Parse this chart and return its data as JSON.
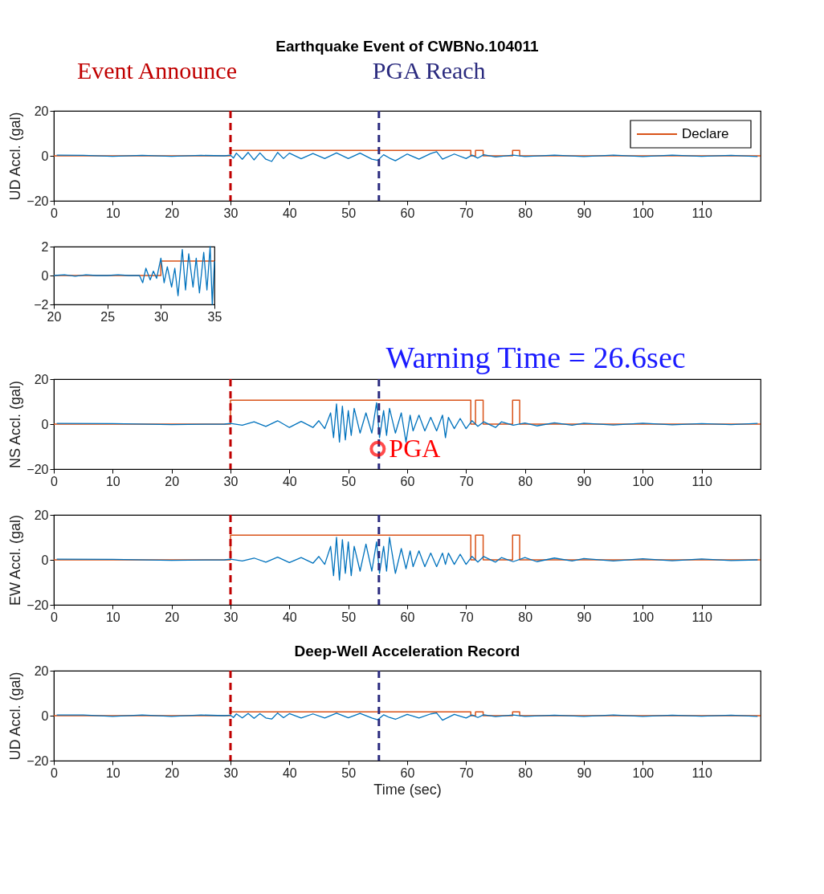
{
  "chart_data": [
    {
      "type": "line",
      "title": "Earthquake Event of CWBNo.104011",
      "ylabel": "UD Accl. (gal)",
      "xlim": [
        0,
        120
      ],
      "xticks": [
        0,
        10,
        20,
        30,
        40,
        50,
        60,
        70,
        80,
        90,
        100,
        110
      ],
      "ylim": [
        -20,
        20
      ],
      "yticks": [
        -20,
        0,
        20
      ],
      "grid": false,
      "legend": "top right",
      "line_style": "solid",
      "series": [
        {
          "color": "#0072bd",
          "x": [
            0.5,
            5,
            10,
            15,
            20,
            25,
            29,
            30,
            30.5,
            31,
            32,
            33,
            34,
            35,
            36,
            37,
            38,
            39,
            40,
            42,
            44,
            46,
            48,
            50,
            52,
            54,
            55,
            56,
            57,
            58,
            60,
            62,
            64,
            65,
            66,
            68,
            70,
            71,
            72,
            73,
            75,
            78,
            80,
            85,
            90,
            95,
            100,
            105,
            110,
            115,
            119.5
          ],
          "values": [
            0.3,
            0.2,
            -0.2,
            0.2,
            -0.2,
            0.2,
            0,
            0.3,
            -1,
            1.2,
            -1.5,
            1.5,
            -1.8,
            1.3,
            -1.5,
            -2.5,
            1.5,
            -1.2,
            1.2,
            -1.3,
            1,
            -1.2,
            1.3,
            -1.2,
            1.2,
            -1.5,
            -2,
            0.5,
            -1,
            -2.2,
            0.8,
            -1.5,
            1,
            1.8,
            -1.5,
            0.8,
            -1.2,
            0.3,
            -1,
            0.5,
            -0.5,
            0.3,
            -0.3,
            0.3,
            -0.3,
            0.3,
            -0.3,
            0.3,
            -0.2,
            0.2,
            -0.3
          ]
        },
        {
          "name": "Declare",
          "type": "step",
          "color": "#d95319",
          "x": [
            0,
            30,
            70.8,
            71.6,
            72.9,
            77.9,
            79.1,
            120
          ],
          "values": [
            0,
            2.4,
            0,
            2.4,
            0,
            2.4,
            0,
            0
          ]
        }
      ],
      "ref_lines": [
        {
          "axis": "x",
          "value": 30,
          "label": "Event Announce",
          "color": "#c00000",
          "line_style": "dashed"
        },
        {
          "axis": "x",
          "value": 55.2,
          "label": "PGA Reach",
          "color": "#2b2b7f",
          "line_style": "dashed"
        }
      ]
    },
    {
      "type": "line",
      "xlim": [
        20,
        35
      ],
      "xticks": [
        20,
        25,
        30,
        35
      ],
      "ylim": [
        -2,
        2
      ],
      "yticks": [
        -2,
        0,
        2
      ],
      "grid": false,
      "line_style": "solid",
      "series": [
        {
          "color": "#0072bd",
          "x": [
            20,
            21,
            22,
            23,
            24,
            25,
            26,
            27,
            28,
            28.3,
            28.6,
            29,
            29.3,
            29.6,
            30,
            30.3,
            30.6,
            31,
            31.3,
            31.6,
            32,
            32.3,
            32.6,
            33,
            33.3,
            33.6,
            34,
            34.3,
            34.6,
            34.8,
            35
          ],
          "values": [
            0,
            0.05,
            -0.05,
            0.05,
            0,
            0,
            0.05,
            0,
            0,
            -0.5,
            0.5,
            -0.3,
            0.3,
            -0.2,
            1.2,
            -0.5,
            0.6,
            -0.8,
            0.5,
            -1.4,
            1.8,
            -1,
            1.5,
            -0.8,
            1.2,
            -1.2,
            1.6,
            -1,
            2,
            -2,
            1
          ]
        },
        {
          "type": "step",
          "color": "#d95319",
          "x": [
            20,
            30,
            35
          ],
          "values": [
            0,
            1,
            1
          ]
        }
      ]
    },
    {
      "type": "line",
      "ylabel": "NS Accl. (gal)",
      "xlim": [
        0,
        120
      ],
      "xticks": [
        0,
        10,
        20,
        30,
        40,
        50,
        60,
        70,
        80,
        90,
        100,
        110
      ],
      "ylim": [
        -20,
        20
      ],
      "yticks": [
        -20,
        0,
        20
      ],
      "grid": false,
      "line_style": "solid",
      "annotations": [
        "Warning Time = 26.6sec",
        {
          "text": "PGA",
          "x": 55,
          "y": -11
        }
      ],
      "series": [
        {
          "color": "#0072bd",
          "x": [
            0.5,
            10,
            20,
            29,
            30,
            32,
            34,
            36,
            38,
            40,
            42,
            44,
            45,
            46,
            47,
            47.5,
            48,
            48.5,
            49,
            49.5,
            50,
            50.5,
            51,
            52,
            53,
            54,
            54.8,
            55.3,
            56,
            56.5,
            57,
            58,
            59,
            59.8,
            60.5,
            61,
            62,
            63,
            64,
            65,
            66,
            66.5,
            67,
            68,
            69,
            70,
            71,
            72,
            73,
            75,
            76,
            78,
            80,
            82,
            85,
            88,
            90,
            95,
            100,
            105,
            110,
            115,
            119.5
          ],
          "values": [
            0.3,
            0.2,
            -0.2,
            0,
            0.3,
            -0.5,
            1,
            -1,
            1.5,
            -1.5,
            1.2,
            -1.5,
            1.5,
            -2,
            5,
            -6,
            9,
            -8,
            8,
            -7,
            6,
            -5,
            7,
            -4,
            5,
            -4,
            9.5,
            -6,
            6,
            -5,
            7,
            -4,
            5,
            -8,
            4,
            -3,
            4,
            -3,
            3,
            -3,
            4,
            -6,
            3,
            -2,
            2.5,
            -2,
            1.5,
            -1,
            1,
            -1.5,
            1,
            -0.5,
            0.5,
            -0.8,
            0.6,
            -0.5,
            0.4,
            -0.4,
            0.4,
            -0.3,
            0.2,
            -0.2,
            0.3
          ]
        },
        {
          "type": "step",
          "color": "#d95319",
          "x": [
            0,
            30,
            70.8,
            71.6,
            72.9,
            77.9,
            79.1,
            120
          ],
          "values": [
            0,
            10.6,
            0,
            10.6,
            0,
            10.6,
            0,
            0
          ]
        }
      ],
      "ref_lines": [
        {
          "axis": "x",
          "value": 30,
          "color": "#c00000",
          "line_style": "dashed"
        },
        {
          "axis": "x",
          "value": 55.2,
          "color": "#2b2b7f",
          "line_style": "dashed"
        }
      ]
    },
    {
      "type": "line",
      "ylabel": "EW Accl. (gal)",
      "xlim": [
        0,
        120
      ],
      "xticks": [
        0,
        10,
        20,
        30,
        40,
        50,
        60,
        70,
        80,
        90,
        100,
        110
      ],
      "ylim": [
        -20,
        20
      ],
      "yticks": [
        -20,
        0,
        20
      ],
      "grid": false,
      "line_style": "solid",
      "series": [
        {
          "color": "#0072bd",
          "x": [
            0.5,
            10,
            20,
            29,
            30,
            32,
            34,
            36,
            38,
            40,
            42,
            44,
            45,
            46,
            47,
            47.5,
            48,
            48.5,
            49,
            49.5,
            50,
            50.5,
            51,
            52,
            53,
            54,
            54.8,
            55.3,
            56,
            56.5,
            57,
            58,
            59,
            59.8,
            60.5,
            61,
            62,
            63,
            64,
            65,
            66,
            66.5,
            67,
            68,
            69,
            70,
            71,
            72,
            73,
            75,
            76,
            78,
            80,
            82,
            85,
            88,
            90,
            95,
            100,
            105,
            110,
            115,
            119.5
          ],
          "values": [
            0.3,
            0.2,
            -0.2,
            0,
            0.3,
            -0.5,
            0.8,
            -1,
            1.2,
            -1.2,
            1,
            -1.5,
            1.5,
            -2,
            6,
            -7,
            10,
            -9,
            9,
            -6,
            8,
            -7,
            6,
            -5,
            7,
            -5,
            8,
            -6,
            6,
            -5,
            10,
            -6,
            5,
            -4,
            4,
            -3,
            4,
            -3,
            3,
            -3,
            3,
            -2,
            3,
            -2,
            2.5,
            -2,
            1.5,
            -1,
            1.5,
            -1,
            1,
            -0.8,
            1,
            -0.8,
            0.8,
            -0.5,
            0.6,
            -0.5,
            0.5,
            -0.4,
            0.4,
            -0.3,
            0
          ]
        },
        {
          "type": "step",
          "color": "#d95319",
          "x": [
            0,
            30,
            70.8,
            71.6,
            72.9,
            77.9,
            79.1,
            120
          ],
          "values": [
            0,
            11,
            0,
            11,
            0,
            11,
            0,
            0
          ]
        }
      ],
      "ref_lines": [
        {
          "axis": "x",
          "value": 30,
          "color": "#c00000",
          "line_style": "dashed"
        },
        {
          "axis": "x",
          "value": 55.2,
          "color": "#2b2b7f",
          "line_style": "dashed"
        }
      ]
    },
    {
      "type": "line",
      "title": "Deep-Well Acceleration Record",
      "xlabel": "Time (sec)",
      "ylabel": "UD Accl. (gal)",
      "xlim": [
        0,
        120
      ],
      "xticks": [
        0,
        10,
        20,
        30,
        40,
        50,
        60,
        70,
        80,
        90,
        100,
        110
      ],
      "ylim": [
        -20,
        20
      ],
      "yticks": [
        -20,
        0,
        20
      ],
      "grid": false,
      "line_style": "solid",
      "series": [
        {
          "color": "#0072bd",
          "x": [
            0.5,
            5,
            10,
            15,
            20,
            25,
            29,
            30,
            30.5,
            31,
            32,
            33,
            34,
            35,
            36,
            37,
            38,
            39,
            40,
            42,
            44,
            46,
            48,
            50,
            52,
            54,
            55,
            56,
            57,
            58,
            60,
            62,
            64,
            65,
            66,
            68,
            70,
            71,
            72,
            73,
            75,
            78,
            80,
            85,
            90,
            95,
            100,
            105,
            110,
            115,
            119.5
          ],
          "values": [
            0.3,
            0.3,
            -0.3,
            0.3,
            -0.3,
            0.3,
            0,
            0.2,
            -0.8,
            0.8,
            -1,
            1,
            -1.2,
            0.9,
            -1,
            -1.5,
            1.2,
            -0.9,
            0.9,
            -1,
            0.8,
            -1,
            1.1,
            -0.9,
            1,
            -1,
            -1.8,
            0.4,
            -0.8,
            -1.6,
            0.6,
            -1,
            0.8,
            1.2,
            -2,
            0.6,
            -1,
            0.3,
            -0.8,
            0.4,
            -0.4,
            0.3,
            -0.3,
            0.2,
            -0.3,
            0.3,
            -0.3,
            0.2,
            -0.2,
            0.2,
            -0.3
          ]
        },
        {
          "type": "step",
          "color": "#d95319",
          "x": [
            0,
            30,
            70.8,
            71.6,
            72.9,
            77.9,
            79.1,
            120
          ],
          "values": [
            0,
            1.7,
            0,
            1.7,
            0,
            1.7,
            0,
            0
          ]
        }
      ],
      "ref_lines": [
        {
          "axis": "x",
          "value": 30,
          "color": "#c00000",
          "line_style": "dashed"
        },
        {
          "axis": "x",
          "value": 55.2,
          "color": "#2b2b7f",
          "line_style": "dashed"
        }
      ]
    }
  ]
}
